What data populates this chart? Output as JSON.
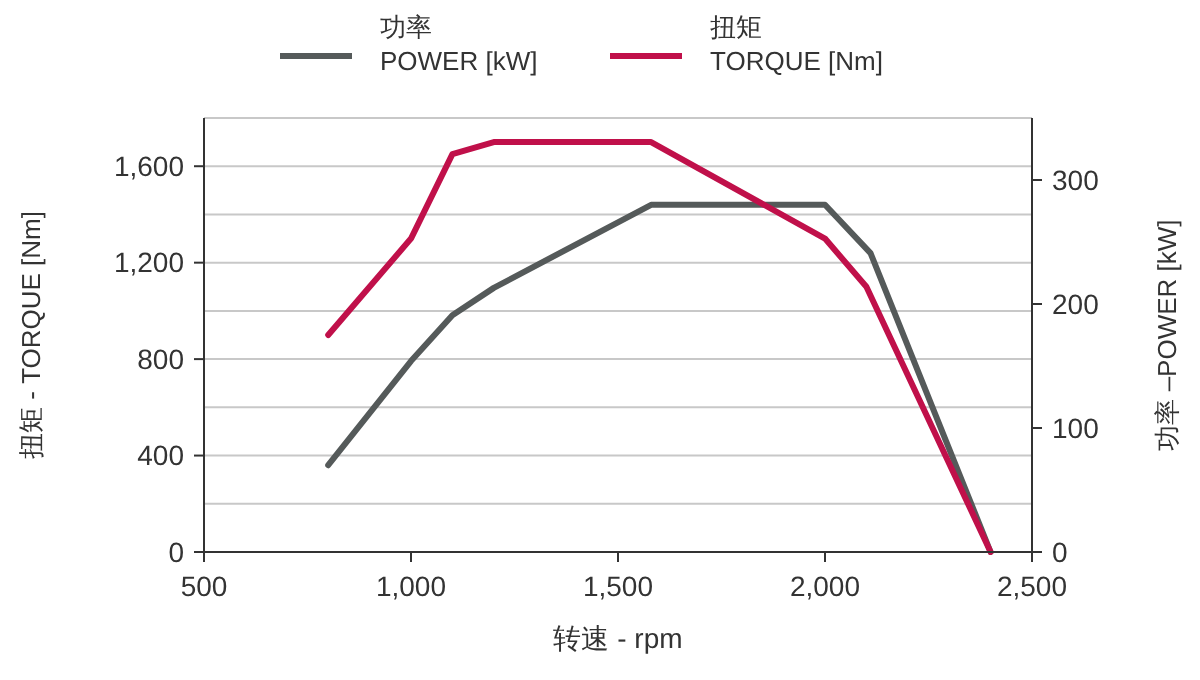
{
  "chart_data": {
    "type": "line",
    "xlabel": "转速 - rpm",
    "ylabel": "扭矩 - TORQUE [Nm]",
    "y2label": "功率 –POWER [kW]",
    "series": [
      {
        "name": "功率\nPOWER  [kW]",
        "color": "#555a5a",
        "axis": "y2",
        "x": [
          800,
          1000,
          1100,
          1200,
          1580,
          2000,
          2110,
          2400
        ],
        "values": [
          70,
          154,
          191,
          213,
          280,
          280,
          241,
          0
        ]
      },
      {
        "name": "扭矩\nTORQUE  [Nm]",
        "color": "#c0104a",
        "x": [
          800,
          1000,
          1100,
          1200,
          1580,
          2000,
          2100,
          2400
        ],
        "values": [
          900,
          1300,
          1650,
          1700,
          1700,
          1300,
          1100,
          0
        ]
      }
    ],
    "xlim": [
      500,
      2500
    ],
    "xticks": [
      {
        "value": 500,
        "label": "500"
      },
      {
        "value": 1000,
        "label": "1,000"
      },
      {
        "value": 1500,
        "label": "1,500"
      },
      {
        "value": 2000,
        "label": "2,000"
      },
      {
        "value": 2500,
        "label": "2,500"
      }
    ],
    "ylim": [
      0,
      1800
    ],
    "yticks": [
      0,
      {
        "value": 200,
        "label": null
      },
      400,
      {
        "value": 600,
        "label": null
      },
      800,
      {
        "value": 1000,
        "label": null
      },
      {
        "value": 1200,
        "label": "1,200"
      },
      {
        "value": 1400,
        "label": null
      },
      {
        "value": 1600,
        "label": "1,600"
      },
      {
        "value": 1800,
        "label": null
      }
    ],
    "y2lim": [
      0,
      350
    ],
    "y2ticks": [
      0,
      100,
      200,
      300
    ],
    "grid": "y",
    "legend": "top",
    "marker": "none",
    "line_style": "solid"
  }
}
